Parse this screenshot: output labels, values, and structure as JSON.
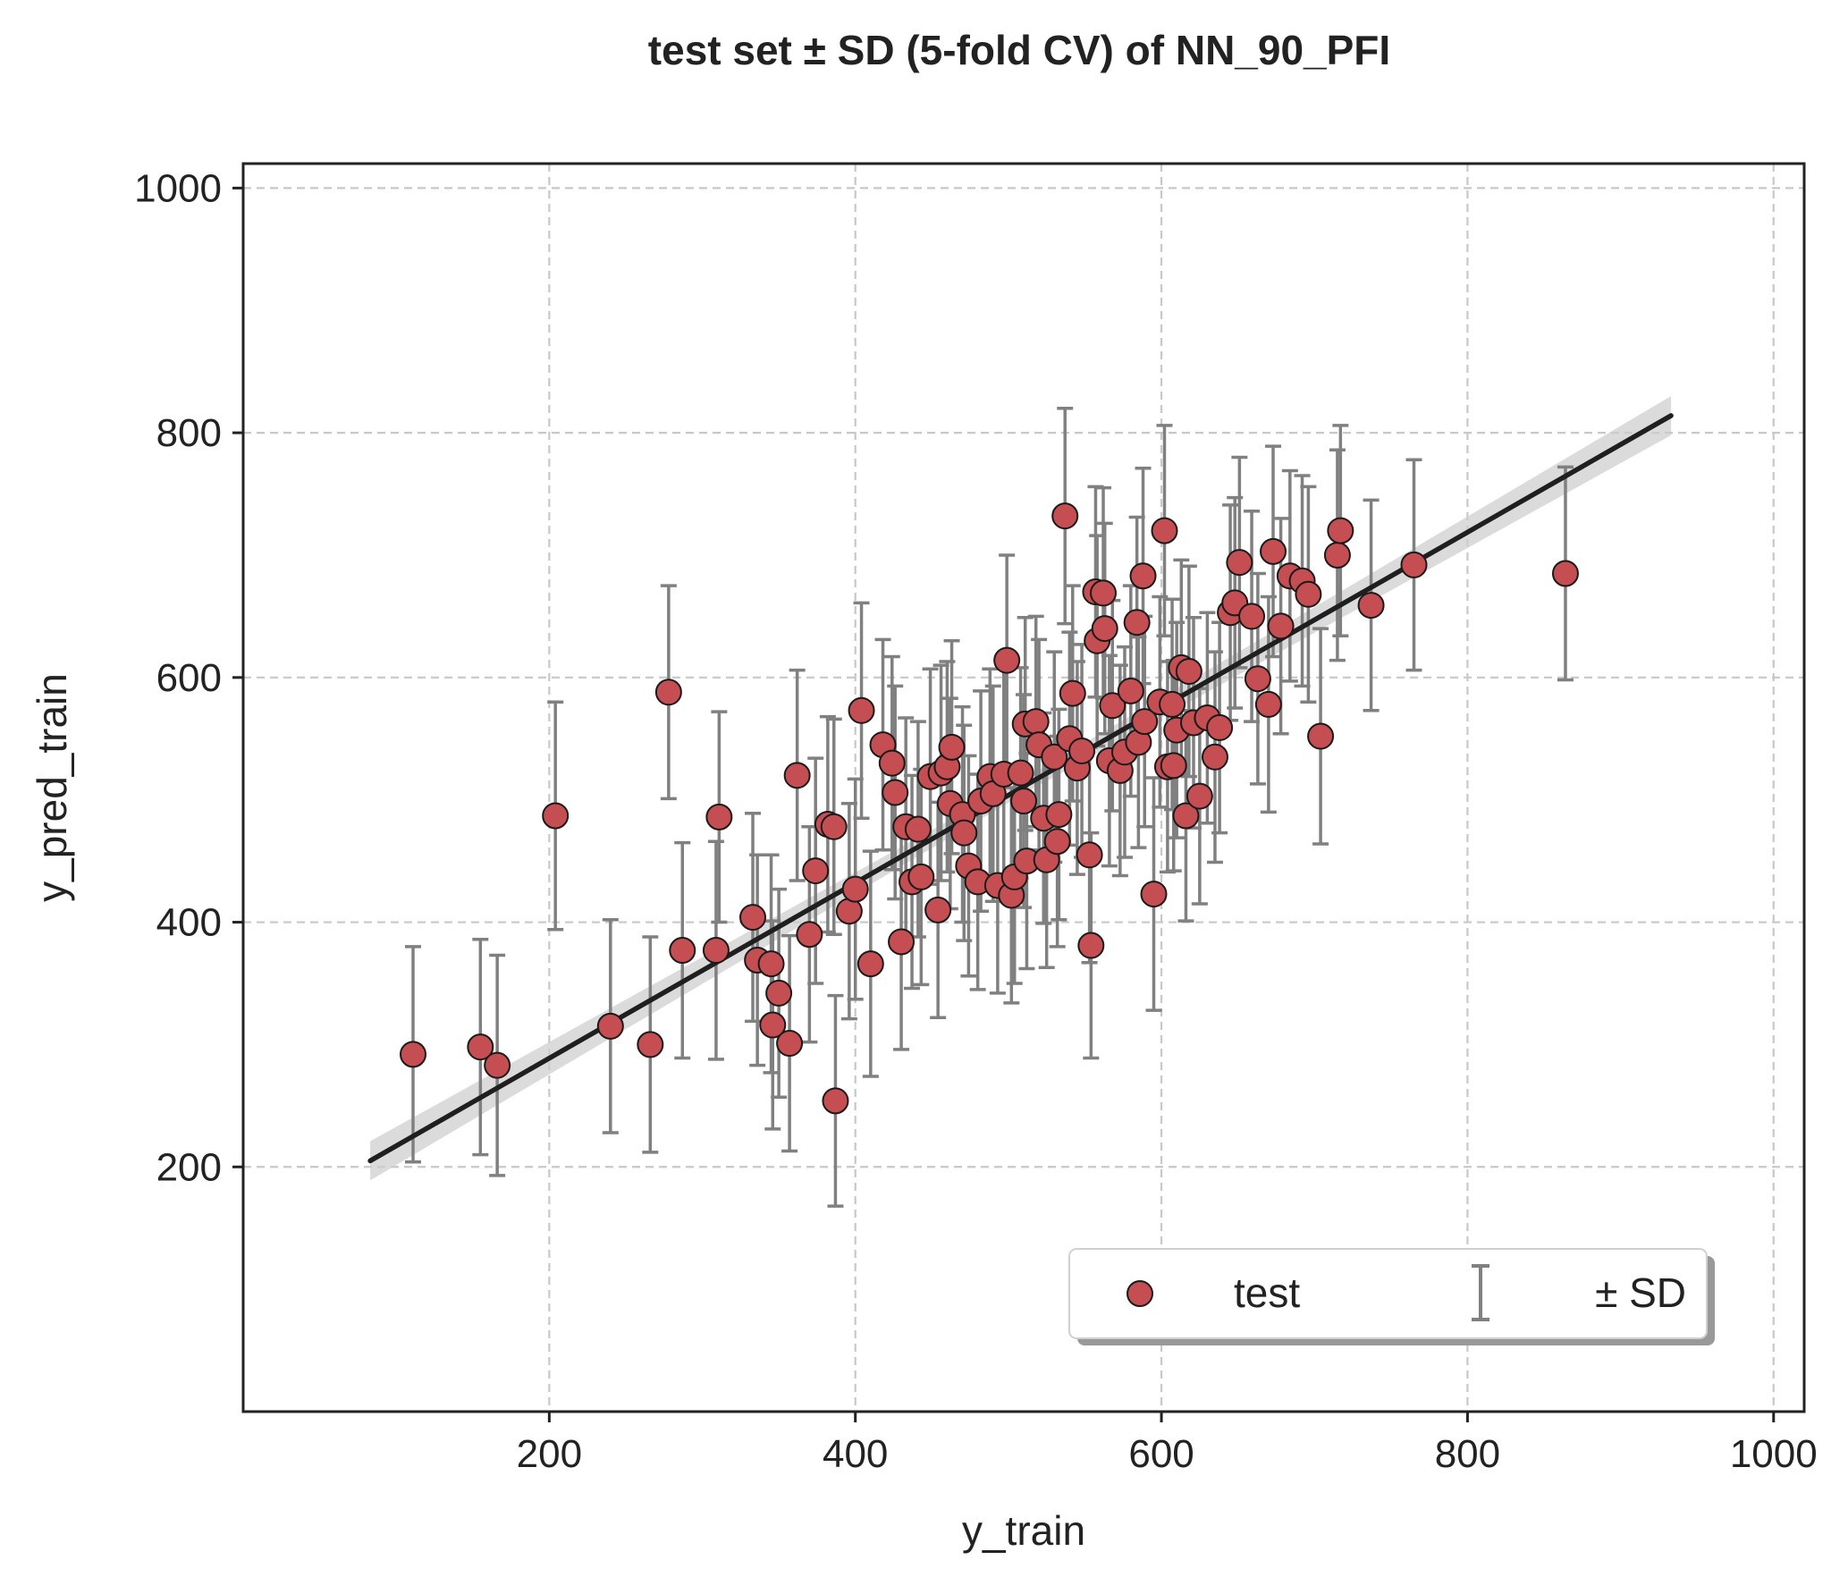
{
  "chart_data": {
    "type": "scatter",
    "title": "test set ± SD (5-fold CV) of NN_90_PFI",
    "xlabel": "y_train",
    "ylabel": "y_pred_train",
    "xlim": [
      0,
      1020
    ],
    "ylim": [
      0,
      1020
    ],
    "xticks": [
      200,
      400,
      600,
      800,
      1000
    ],
    "yticks": [
      200,
      400,
      600,
      800,
      1000
    ],
    "grid": true,
    "legend": {
      "placement": "lower-right",
      "entries": [
        "test",
        "± SD"
      ]
    },
    "colors": {
      "point": "#c44e52",
      "error_bar": "#808080",
      "fit_line": "#1f1f1f",
      "ci_band": "#cccccc",
      "grid": "#c8c8c8"
    },
    "fit_line": {
      "x": [
        83,
        933
      ],
      "y": [
        205,
        814
      ]
    },
    "series": [
      {
        "name": "test",
        "points": [
          {
            "x": 111,
            "y": 292,
            "sd": 88
          },
          {
            "x": 155,
            "y": 298,
            "sd": 88
          },
          {
            "x": 166,
            "y": 283,
            "sd": 90
          },
          {
            "x": 204,
            "y": 487,
            "sd": 93
          },
          {
            "x": 240,
            "y": 315,
            "sd": 87
          },
          {
            "x": 266,
            "y": 300,
            "sd": 88
          },
          {
            "x": 278,
            "y": 588,
            "sd": 87
          },
          {
            "x": 287,
            "y": 377,
            "sd": 88
          },
          {
            "x": 309,
            "y": 377,
            "sd": 89
          },
          {
            "x": 311,
            "y": 486,
            "sd": 86
          },
          {
            "x": 333,
            "y": 404,
            "sd": 85
          },
          {
            "x": 336,
            "y": 369,
            "sd": 86
          },
          {
            "x": 345,
            "y": 366,
            "sd": 89
          },
          {
            "x": 346,
            "y": 316,
            "sd": 85
          },
          {
            "x": 350,
            "y": 342,
            "sd": 85
          },
          {
            "x": 357,
            "y": 301,
            "sd": 88
          },
          {
            "x": 362,
            "y": 520,
            "sd": 86
          },
          {
            "x": 370,
            "y": 390,
            "sd": 88
          },
          {
            "x": 374,
            "y": 442,
            "sd": 92
          },
          {
            "x": 382,
            "y": 480,
            "sd": 88
          },
          {
            "x": 386,
            "y": 478,
            "sd": 88
          },
          {
            "x": 387,
            "y": 254,
            "sd": 86
          },
          {
            "x": 396,
            "y": 409,
            "sd": 88
          },
          {
            "x": 400,
            "y": 427,
            "sd": 90
          },
          {
            "x": 404,
            "y": 573,
            "sd": 88
          },
          {
            "x": 410,
            "y": 366,
            "sd": 92
          },
          {
            "x": 418,
            "y": 545,
            "sd": 86
          },
          {
            "x": 424,
            "y": 530,
            "sd": 87
          },
          {
            "x": 426,
            "y": 506,
            "sd": 87
          },
          {
            "x": 430,
            "y": 384,
            "sd": 88
          },
          {
            "x": 433,
            "y": 478,
            "sd": 89
          },
          {
            "x": 437,
            "y": 433,
            "sd": 87
          },
          {
            "x": 441,
            "y": 476,
            "sd": 88
          },
          {
            "x": 443,
            "y": 437,
            "sd": 88
          },
          {
            "x": 449,
            "y": 519,
            "sd": 88
          },
          {
            "x": 454,
            "y": 410,
            "sd": 88
          },
          {
            "x": 456,
            "y": 522,
            "sd": 88
          },
          {
            "x": 460,
            "y": 527,
            "sd": 86
          },
          {
            "x": 462,
            "y": 497,
            "sd": 86
          },
          {
            "x": 463,
            "y": 543,
            "sd": 87
          },
          {
            "x": 470,
            "y": 488,
            "sd": 88
          },
          {
            "x": 471,
            "y": 473,
            "sd": 88
          },
          {
            "x": 474,
            "y": 446,
            "sd": 90
          },
          {
            "x": 480,
            "y": 433,
            "sd": 88
          },
          {
            "x": 482,
            "y": 499,
            "sd": 90
          },
          {
            "x": 488,
            "y": 519,
            "sd": 88
          },
          {
            "x": 490,
            "y": 505,
            "sd": 88
          },
          {
            "x": 493,
            "y": 430,
            "sd": 88
          },
          {
            "x": 497,
            "y": 521,
            "sd": 88
          },
          {
            "x": 499,
            "y": 614,
            "sd": 86
          },
          {
            "x": 502,
            "y": 422,
            "sd": 88
          },
          {
            "x": 504,
            "y": 437,
            "sd": 87
          },
          {
            "x": 508,
            "y": 522,
            "sd": 86
          },
          {
            "x": 510,
            "y": 499,
            "sd": 87
          },
          {
            "x": 511,
            "y": 562,
            "sd": 87
          },
          {
            "x": 512,
            "y": 450,
            "sd": 88
          },
          {
            "x": 518,
            "y": 564,
            "sd": 86
          },
          {
            "x": 520,
            "y": 545,
            "sd": 86
          },
          {
            "x": 523,
            "y": 485,
            "sd": 86
          },
          {
            "x": 525,
            "y": 451,
            "sd": 88
          },
          {
            "x": 530,
            "y": 535,
            "sd": 86
          },
          {
            "x": 532,
            "y": 466,
            "sd": 86
          },
          {
            "x": 533,
            "y": 488,
            "sd": 86
          },
          {
            "x": 537,
            "y": 732,
            "sd": 88
          },
          {
            "x": 540,
            "y": 550,
            "sd": 87
          },
          {
            "x": 542,
            "y": 587,
            "sd": 88
          },
          {
            "x": 545,
            "y": 526,
            "sd": 87
          },
          {
            "x": 548,
            "y": 540,
            "sd": 87
          },
          {
            "x": 553,
            "y": 455,
            "sd": 88
          },
          {
            "x": 554,
            "y": 381,
            "sd": 92
          },
          {
            "x": 557,
            "y": 670,
            "sd": 86
          },
          {
            "x": 558,
            "y": 630,
            "sd": 86
          },
          {
            "x": 562,
            "y": 669,
            "sd": 86
          },
          {
            "x": 563,
            "y": 640,
            "sd": 86
          },
          {
            "x": 566,
            "y": 532,
            "sd": 86
          },
          {
            "x": 568,
            "y": 577,
            "sd": 86
          },
          {
            "x": 573,
            "y": 524,
            "sd": 86
          },
          {
            "x": 576,
            "y": 539,
            "sd": 86
          },
          {
            "x": 580,
            "y": 589,
            "sd": 86
          },
          {
            "x": 584,
            "y": 645,
            "sd": 86
          },
          {
            "x": 585,
            "y": 547,
            "sd": 86
          },
          {
            "x": 588,
            "y": 683,
            "sd": 88
          },
          {
            "x": 589,
            "y": 564,
            "sd": 86
          },
          {
            "x": 595,
            "y": 423,
            "sd": 95
          },
          {
            "x": 599,
            "y": 580,
            "sd": 86
          },
          {
            "x": 602,
            "y": 720,
            "sd": 86
          },
          {
            "x": 604,
            "y": 527,
            "sd": 86
          },
          {
            "x": 607,
            "y": 578,
            "sd": 86
          },
          {
            "x": 608,
            "y": 528,
            "sd": 86
          },
          {
            "x": 610,
            "y": 557,
            "sd": 88
          },
          {
            "x": 613,
            "y": 608,
            "sd": 88
          },
          {
            "x": 616,
            "y": 487,
            "sd": 86
          },
          {
            "x": 618,
            "y": 605,
            "sd": 86
          },
          {
            "x": 621,
            "y": 563,
            "sd": 86
          },
          {
            "x": 625,
            "y": 503,
            "sd": 88
          },
          {
            "x": 630,
            "y": 567,
            "sd": 86
          },
          {
            "x": 635,
            "y": 535,
            "sd": 86
          },
          {
            "x": 638,
            "y": 559,
            "sd": 86
          },
          {
            "x": 645,
            "y": 653,
            "sd": 88
          },
          {
            "x": 648,
            "y": 661,
            "sd": 86
          },
          {
            "x": 651,
            "y": 694,
            "sd": 86
          },
          {
            "x": 659,
            "y": 650,
            "sd": 86
          },
          {
            "x": 663,
            "y": 599,
            "sd": 86
          },
          {
            "x": 670,
            "y": 578,
            "sd": 88
          },
          {
            "x": 673,
            "y": 703,
            "sd": 86
          },
          {
            "x": 678,
            "y": 642,
            "sd": 88
          },
          {
            "x": 684,
            "y": 683,
            "sd": 86
          },
          {
            "x": 692,
            "y": 679,
            "sd": 86
          },
          {
            "x": 696,
            "y": 668,
            "sd": 88
          },
          {
            "x": 704,
            "y": 552,
            "sd": 88
          },
          {
            "x": 715,
            "y": 700,
            "sd": 86
          },
          {
            "x": 717,
            "y": 720,
            "sd": 86
          },
          {
            "x": 737,
            "y": 659,
            "sd": 86
          },
          {
            "x": 765,
            "y": 692,
            "sd": 86
          },
          {
            "x": 864,
            "y": 685,
            "sd": 87
          }
        ]
      }
    ]
  }
}
